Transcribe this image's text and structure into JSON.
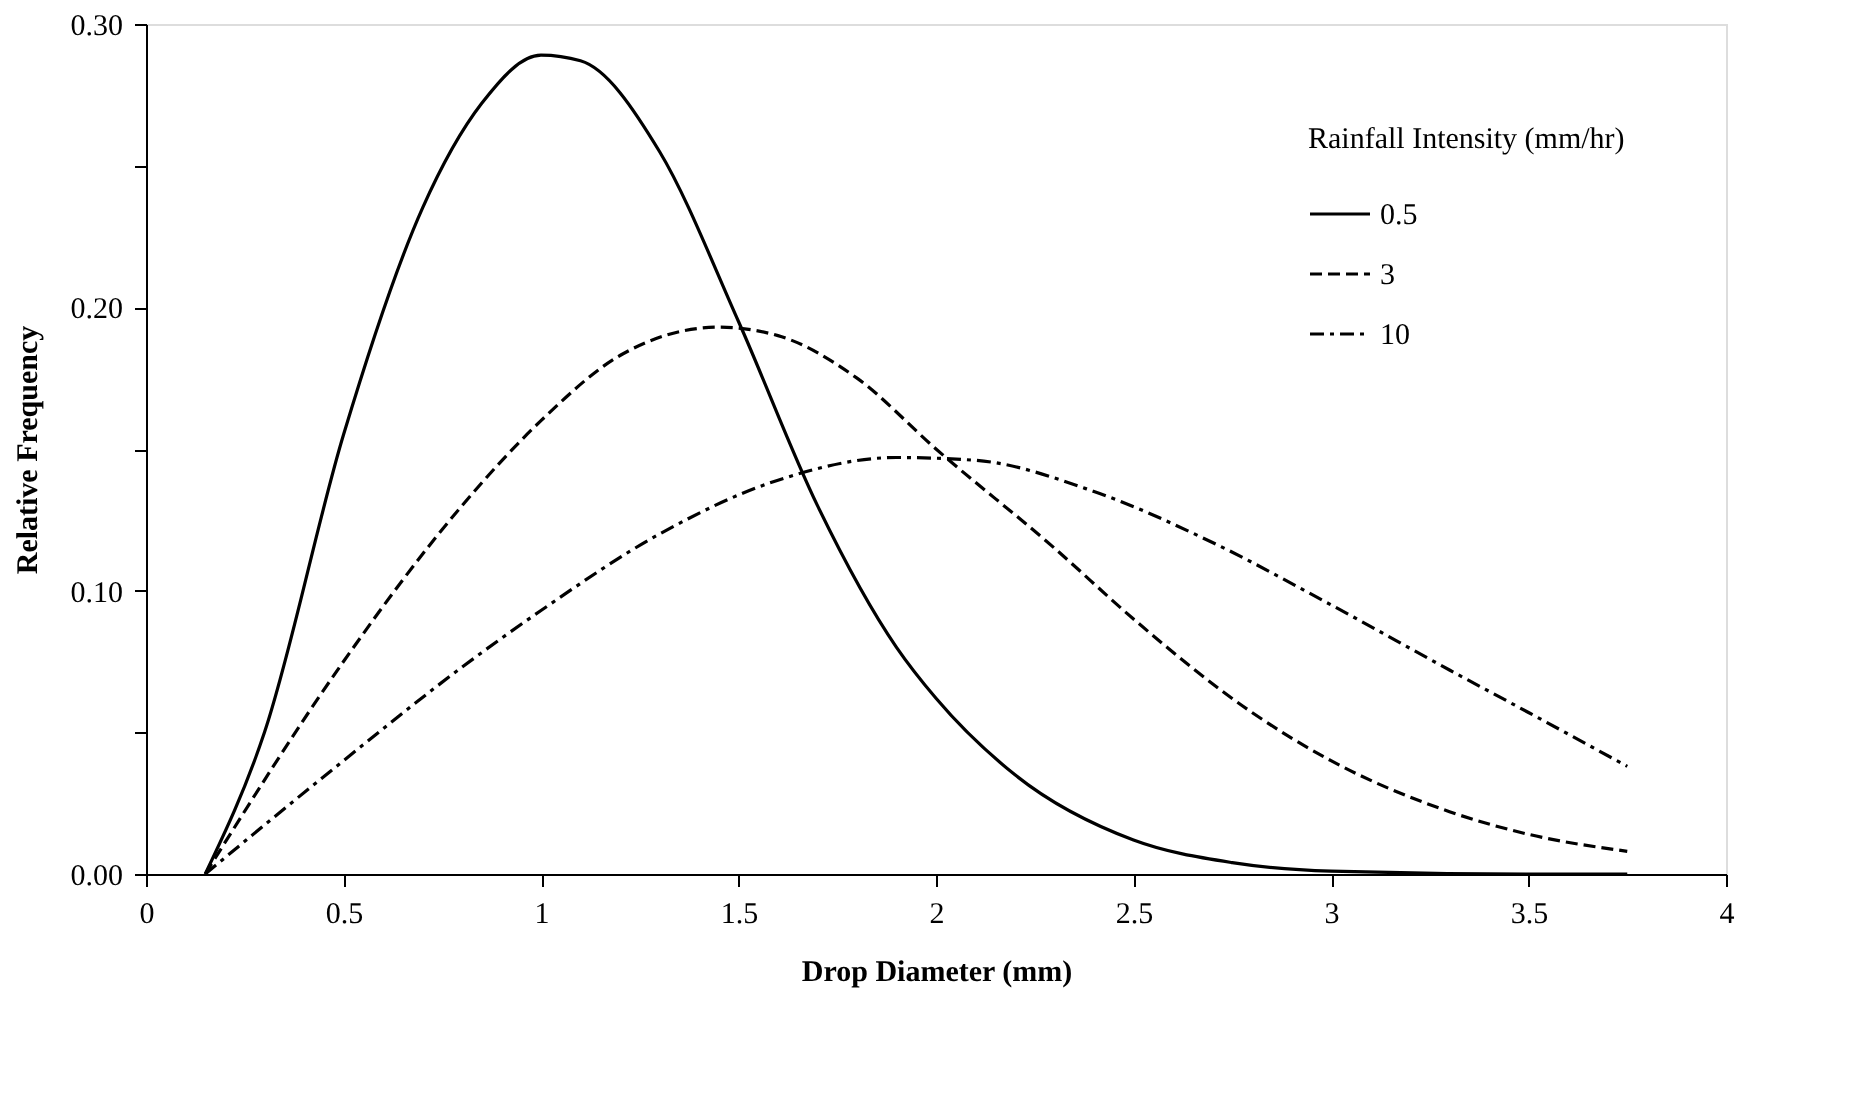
{
  "chart_data": {
    "type": "line",
    "xlabel": "Drop Diameter (mm)",
    "ylabel": "Relative Frequency",
    "legend_title": "Rainfall Intensity (mm/hr)",
    "legend": "top right",
    "grid": false,
    "marker": "none",
    "xlim": [
      0,
      4
    ],
    "xticks": [
      0,
      0.5,
      1,
      1.5,
      2,
      2.5,
      3,
      3.5,
      4
    ],
    "ylim": [
      0,
      0.3
    ],
    "yticks": [
      {
        "value": 0,
        "label": "0.00"
      },
      {
        "value": 0.05,
        "label": null
      },
      {
        "value": 0.1,
        "label": "0.10"
      },
      {
        "value": 0.15,
        "label": null
      },
      {
        "value": 0.2,
        "label": "0.20"
      },
      {
        "value": 0.25,
        "label": null
      },
      {
        "value": 0.3,
        "label": "0.30"
      }
    ],
    "series": [
      {
        "name": "0.5",
        "color": "#000000",
        "line_style": "solid",
        "x": [
          0.15,
          0.3,
          0.5,
          0.7,
          0.85,
          1.0,
          1.1,
          1.3,
          1.5,
          1.7,
          1.9,
          2.0,
          2.2,
          2.5,
          2.75,
          3.0,
          3.5,
          3.75
        ],
        "values": [
          0,
          0.05,
          0.155,
          0.235,
          0.272,
          0.289,
          0.287,
          0.255,
          0.195,
          0.13,
          0.08,
          0.062,
          0.035,
          0.012,
          0.004,
          0.001,
          0,
          0
        ]
      },
      {
        "name": "3",
        "color": "#000000",
        "line_style": "dashed",
        "x": [
          0.15,
          0.5,
          0.8,
          1.0,
          1.2,
          1.45,
          1.6,
          1.8,
          2.0,
          2.3,
          2.5,
          2.8,
          3.0,
          3.3,
          3.5,
          3.75
        ],
        "values": [
          0,
          0.075,
          0.13,
          0.16,
          0.183,
          0.193,
          0.19,
          0.175,
          0.15,
          0.115,
          0.09,
          0.057,
          0.04,
          0.022,
          0.014,
          0.008
        ]
      },
      {
        "name": "10",
        "color": "#000000",
        "line_style": "dashdot",
        "x": [
          0.15,
          0.5,
          0.8,
          1.0,
          1.3,
          1.6,
          1.9,
          2.1,
          2.4,
          2.7,
          3.0,
          3.3,
          3.5,
          3.75
        ],
        "values": [
          0,
          0.04,
          0.073,
          0.093,
          0.12,
          0.139,
          0.147,
          0.146,
          0.135,
          0.117,
          0.095,
          0.072,
          0.057,
          0.038
        ]
      }
    ]
  }
}
